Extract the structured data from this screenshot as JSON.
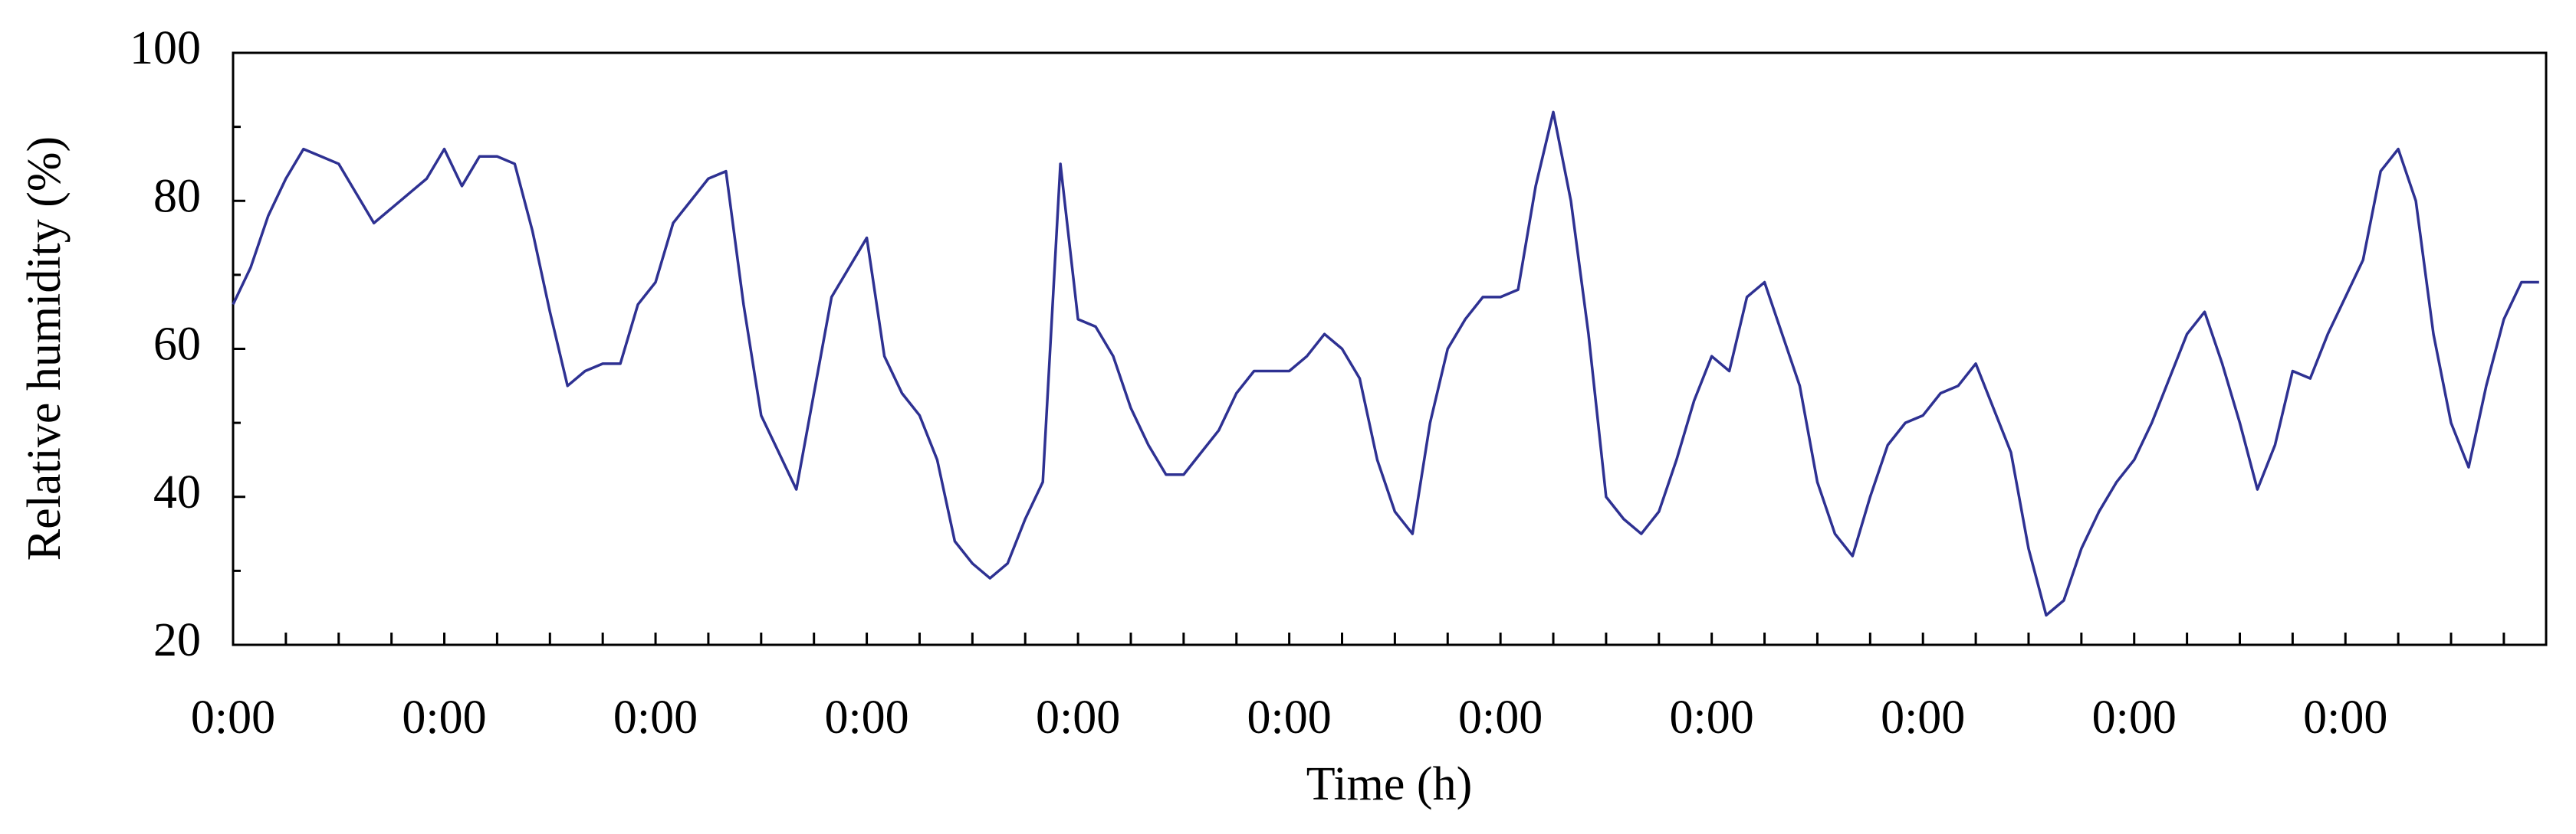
{
  "chart_data": {
    "type": "line",
    "x_label": "Time (h)",
    "y_label": "Relative humidity (%)",
    "categories": [
      "0:00",
      null,
      null,
      null,
      null,
      null,
      null,
      null,
      null,
      null,
      null,
      null,
      "0:00",
      null,
      null,
      null,
      null,
      null,
      null,
      null,
      null,
      null,
      null,
      null,
      "0:00",
      null,
      null,
      null,
      null,
      null,
      null,
      null,
      null,
      null,
      null,
      null,
      "0:00",
      null,
      null,
      null,
      null,
      null,
      null,
      null,
      null,
      null,
      null,
      null,
      "0:00",
      null,
      null,
      null,
      null,
      null,
      null,
      null,
      null,
      null,
      null,
      null,
      "0:00",
      null,
      null,
      null,
      null,
      null,
      null,
      null,
      null,
      null,
      null,
      null,
      "0:00",
      null,
      null,
      null,
      null,
      null,
      null,
      null,
      null,
      null,
      null,
      null,
      "0:00",
      null,
      null,
      null,
      null,
      null,
      null,
      null,
      null,
      null,
      null,
      null,
      "0:00",
      null,
      null,
      null,
      null,
      null,
      null,
      null,
      null,
      null,
      null,
      null,
      "0:00",
      null,
      null,
      null,
      null,
      null,
      null,
      null,
      null,
      null,
      null,
      null,
      "0:00",
      null,
      null,
      null,
      null,
      null,
      null,
      null,
      null,
      null,
      null,
      null
    ],
    "values": [
      66,
      71,
      78,
      83,
      87,
      86,
      85,
      81,
      77,
      79,
      81,
      83,
      87,
      82,
      86,
      86,
      85,
      76,
      65,
      55,
      57,
      58,
      58,
      66,
      69,
      77,
      80,
      83,
      84,
      66,
      51,
      46,
      41,
      54,
      67,
      71,
      75,
      59,
      54,
      51,
      45,
      34,
      31,
      29,
      31,
      37,
      42,
      85,
      64,
      63,
      59,
      52,
      47,
      43,
      43,
      46,
      49,
      54,
      57,
      57,
      57,
      59,
      62,
      60,
      56,
      45,
      38,
      35,
      50,
      60,
      64,
      67,
      67,
      68,
      82,
      92,
      80,
      62,
      40,
      37,
      35,
      38,
      45,
      53,
      59,
      57,
      67,
      69,
      62,
      55,
      42,
      35,
      32,
      40,
      47,
      50,
      51,
      54,
      55,
      58,
      52,
      46,
      33,
      24,
      26,
      33,
      38,
      42,
      45,
      50,
      56,
      62,
      65,
      58,
      50,
      41,
      47,
      57,
      56,
      62,
      67,
      72,
      84,
      87,
      80,
      62,
      50,
      44,
      55,
      64,
      69,
      69
    ],
    "color": "#2e3192",
    "ylim": [
      20,
      100
    ],
    "yticks": [
      20,
      40,
      60,
      80,
      100
    ]
  }
}
